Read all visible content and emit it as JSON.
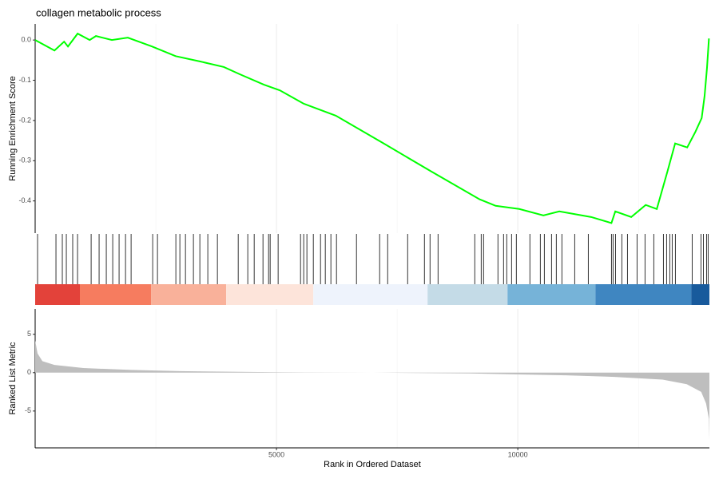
{
  "chart_data": [
    {
      "type": "line",
      "title": "collagen metabolic process",
      "ylabel": "Running Enrichment Score",
      "color": "#00ff00",
      "x": [
        0,
        400,
        600,
        680,
        880,
        1130,
        1260,
        1590,
        1920,
        2420,
        2910,
        3410,
        3910,
        4240,
        4740,
        5070,
        5560,
        6230,
        7220,
        8210,
        9210,
        9540,
        10030,
        10530,
        10860,
        11520,
        11940,
        12020,
        12350,
        12650,
        12880,
        13100,
        13260,
        13510,
        13680,
        13810,
        13870,
        13920,
        13960
      ],
      "values": [
        0,
        -0.026,
        -0.004,
        -0.016,
        0.016,
        0,
        0.01,
        0,
        0.006,
        -0.016,
        -0.04,
        -0.053,
        -0.067,
        -0.085,
        -0.111,
        -0.125,
        -0.158,
        -0.188,
        -0.257,
        -0.327,
        -0.396,
        -0.412,
        -0.42,
        -0.436,
        -0.426,
        -0.44,
        -0.455,
        -0.426,
        -0.44,
        -0.41,
        -0.42,
        -0.327,
        -0.257,
        -0.267,
        -0.228,
        -0.194,
        -0.139,
        -0.069,
        0.004
      ],
      "xlim": [
        0,
        13970
      ],
      "ylim": [
        -0.48,
        0.04
      ],
      "yticks": [
        {
          "value": 0,
          "label": "0.0"
        },
        -0.1,
        -0.2,
        -0.3,
        -0.4
      ],
      "xticks": [
        5000,
        10000
      ],
      "xminorticks": [
        2500,
        7500,
        12500
      ]
    },
    {
      "type": "rug",
      "color": "#000000",
      "x": [
        50,
        431,
        563,
        646,
        778,
        878,
        1160,
        1325,
        1474,
        1607,
        1739,
        1872,
        1988,
        2435,
        2534,
        2915,
        2998,
        3114,
        3279,
        3412,
        3577,
        3776,
        4207,
        4405,
        4538,
        4720,
        4836,
        4869,
        5034,
        5498,
        5564,
        5630,
        5763,
        5912,
        6011,
        6127,
        6243,
        6657,
        7137,
        7303,
        7717,
        8065,
        8181,
        8347,
        9108,
        9241,
        9290,
        9588,
        9704,
        9770,
        9870,
        9969,
        10250,
        10466,
        10549,
        10698,
        10797,
        10913,
        11178,
        11460,
        11940,
        11973,
        12023,
        12155,
        12271,
        12470,
        12635,
        12817,
        13016,
        13082,
        13148,
        13198,
        13264,
        13612,
        13794,
        13844,
        13910,
        13943
      ],
      "xlim": [
        0,
        13970
      ],
      "bins": [
        0,
        927,
        2401,
        3958,
        5763,
        8131,
        9787,
        11609,
        13596,
        13970
      ],
      "colors": [
        "#e3423a",
        "#f67c5f",
        "#f9b19a",
        "#fde4da",
        "#eef3fc",
        "#c4dbe7",
        "#76b3d8",
        "#3f86c1",
        "#185a9c"
      ]
    },
    {
      "type": "area",
      "ylabel": "Ranked List Metric",
      "xlabel": "Rank in Ordered Dataset",
      "color": "#bebebe",
      "x": [
        0,
        50,
        150,
        400,
        1000,
        2000,
        3000,
        5000,
        7000,
        9000,
        11000,
        12000,
        13000,
        13500,
        13800,
        13900,
        13960,
        13970
      ],
      "values": [
        4.2,
        2.5,
        1.5,
        1.0,
        0.6,
        0.35,
        0.2,
        0.05,
        0,
        -0.1,
        -0.35,
        -0.55,
        -0.9,
        -1.5,
        -2.5,
        -4,
        -6,
        -8.8
      ],
      "xlim": [
        0,
        13970
      ],
      "ylim": [
        -9.8,
        8.3
      ],
      "yticks": [
        5,
        0,
        -5
      ],
      "xticks": [
        5000,
        10000
      ],
      "xminorticks": [
        2500,
        7500,
        12500
      ]
    }
  ]
}
